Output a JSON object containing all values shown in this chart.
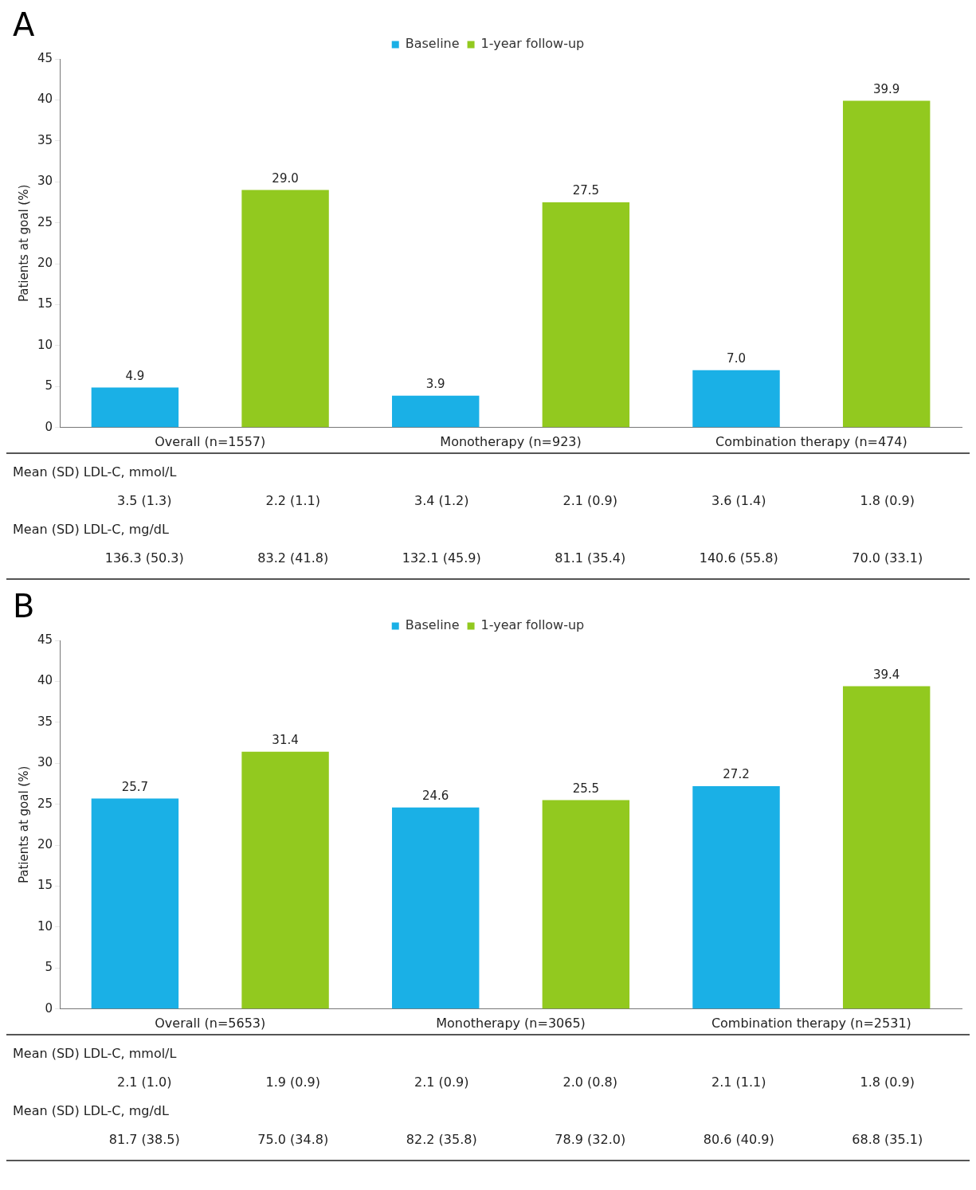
{
  "chart_data": [
    {
      "type": "bar",
      "title": "A",
      "ylabel": "Patients at goal (%)",
      "categories": [
        "Overall (n=1557)",
        "Monotherapy (n=923)",
        "Combination therapy (n=474)"
      ],
      "series": [
        {
          "name": "Baseline",
          "color": "#1ab0e6",
          "values": [
            4.9,
            3.9,
            7.0
          ],
          "value_labels": [
            "4.9",
            "3.9",
            "7.0"
          ]
        },
        {
          "name": "1-year follow-up",
          "color": "#92c91f",
          "values": [
            29.0,
            27.5,
            39.9
          ],
          "value_labels": [
            "29.0",
            "27.5",
            "39.9"
          ]
        }
      ],
      "ylim": [
        0,
        45
      ],
      "yticks": [
        0,
        5,
        10,
        15,
        20,
        25,
        30,
        35,
        40,
        45
      ],
      "grid": false,
      "legend": "top",
      "annotations": [
        "Mean (SD) LDL-C, mmol/L",
        "3.5 (1.3)",
        "2.2 (1.1)",
        "3.4 (1.2)",
        "2.1 (0.9)",
        "3.6 (1.4)",
        "1.8 (0.9)",
        "Mean (SD) LDL-C, mg/dL",
        "136.3 (50.3)",
        "83.2 (41.8)",
        "132.1 (45.9)",
        "81.1 (35.4)",
        "140.6 (55.8)",
        "70.0 (33.1)"
      ]
    },
    {
      "type": "bar",
      "title": "B",
      "ylabel": "Patients at goal (%)",
      "categories": [
        "Overall (n=5653)",
        "Monotherapy (n=3065)",
        "Combination therapy (n=2531)"
      ],
      "series": [
        {
          "name": "Baseline",
          "color": "#1ab0e6",
          "values": [
            25.7,
            24.6,
            27.2
          ],
          "value_labels": [
            "25.7",
            "24.6",
            "27.2"
          ]
        },
        {
          "name": "1-year follow-up",
          "color": "#92c91f",
          "values": [
            31.4,
            25.5,
            39.4
          ],
          "value_labels": [
            "31.4",
            "25.5",
            "39.4"
          ]
        }
      ],
      "ylim": [
        0,
        45
      ],
      "yticks": [
        0,
        5,
        10,
        15,
        20,
        25,
        30,
        35,
        40,
        45
      ],
      "grid": false,
      "legend": "top",
      "annotations": [
        "Mean (SD) LDL-C, mmol/L",
        "2.1 (1.0)",
        "1.9 (0.9)",
        "2.1 (0.9)",
        "2.0 (0.8)",
        "2.1 (1.1)",
        "1.8 (0.9)",
        "Mean (SD) LDL-C, mg/dL",
        "81.7 (38.5)",
        "75.0 (34.8)",
        "82.2 (35.8)",
        "78.9 (32.0)",
        "80.6 (40.9)",
        "68.8 (35.1)"
      ]
    }
  ]
}
